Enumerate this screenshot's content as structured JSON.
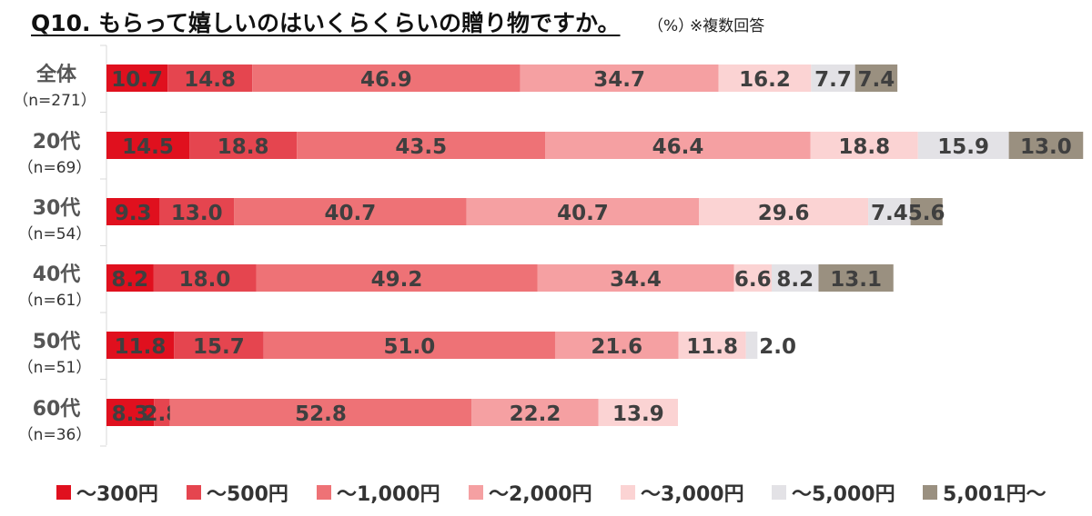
{
  "title": "Q10. もらって嬉しいのはいくらくらいの贈り物ですか。",
  "unit": "（%）",
  "note": "※複数回答",
  "chart_data": {
    "type": "bar",
    "orientation": "horizontal",
    "stacked": true,
    "categories": [
      {
        "label": "全体",
        "n": "（n=271）"
      },
      {
        "label": "20代",
        "n": "（n=69）"
      },
      {
        "label": "30代",
        "n": "（n=54）"
      },
      {
        "label": "40代",
        "n": "（n=61）"
      },
      {
        "label": "50代",
        "n": "（n=51）"
      },
      {
        "label": "60代",
        "n": "（n=36）"
      }
    ],
    "series": [
      {
        "name": "～300円",
        "color": "#e0101e",
        "values": [
          10.7,
          14.5,
          9.3,
          8.2,
          11.8,
          8.3
        ]
      },
      {
        "name": "～500円",
        "color": "#e5454f",
        "values": [
          14.8,
          18.8,
          13.0,
          18.0,
          15.7,
          2.8
        ]
      },
      {
        "name": "～1,000円",
        "color": "#ee7276",
        "values": [
          46.9,
          43.5,
          40.7,
          49.2,
          51.0,
          52.8
        ]
      },
      {
        "name": "～2,000円",
        "color": "#f5a0a2",
        "values": [
          34.7,
          46.4,
          40.7,
          34.4,
          21.6,
          22.2
        ]
      },
      {
        "name": "～3,000円",
        "color": "#fbd3d3",
        "values": [
          16.2,
          18.8,
          29.6,
          6.6,
          11.8,
          13.9
        ]
      },
      {
        "name": "～5,000円",
        "color": "#e3e2e6",
        "values": [
          7.7,
          15.9,
          7.4,
          8.2,
          2.0,
          null
        ]
      },
      {
        "name": "5,001円～",
        "color": "#9a9080",
        "values": [
          7.4,
          13.0,
          5.6,
          13.1,
          null,
          null
        ]
      }
    ],
    "legend": "bottom",
    "grid": false
  }
}
